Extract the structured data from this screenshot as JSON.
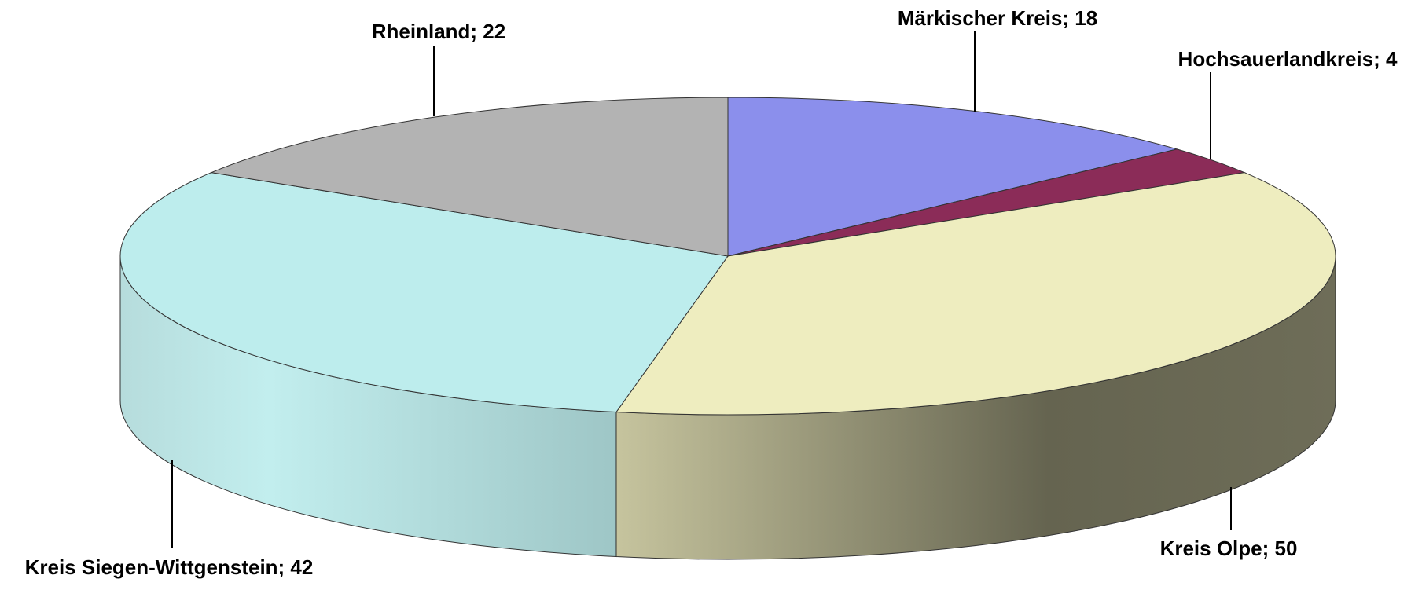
{
  "chart_data": {
    "type": "pie3d",
    "categories": [
      "Märkischer Kreis",
      "Hochsauerlandkreis",
      "Kreis Olpe",
      "Kreis Siegen-Wittgenstein",
      "Rheinland"
    ],
    "values": [
      18,
      4,
      50,
      42,
      22
    ],
    "value_labels": [
      "Märkischer Kreis; 18",
      "Hochsauerlandkreis; 4",
      "Kreis Olpe; 50",
      "Kreis Siegen-Wittgenstein; 42",
      "Rheinland; 22"
    ],
    "colors": [
      "#8b8fec",
      "#8b2c58",
      "#eeedbf",
      "#bdeded",
      "#b3b3b3"
    ]
  }
}
